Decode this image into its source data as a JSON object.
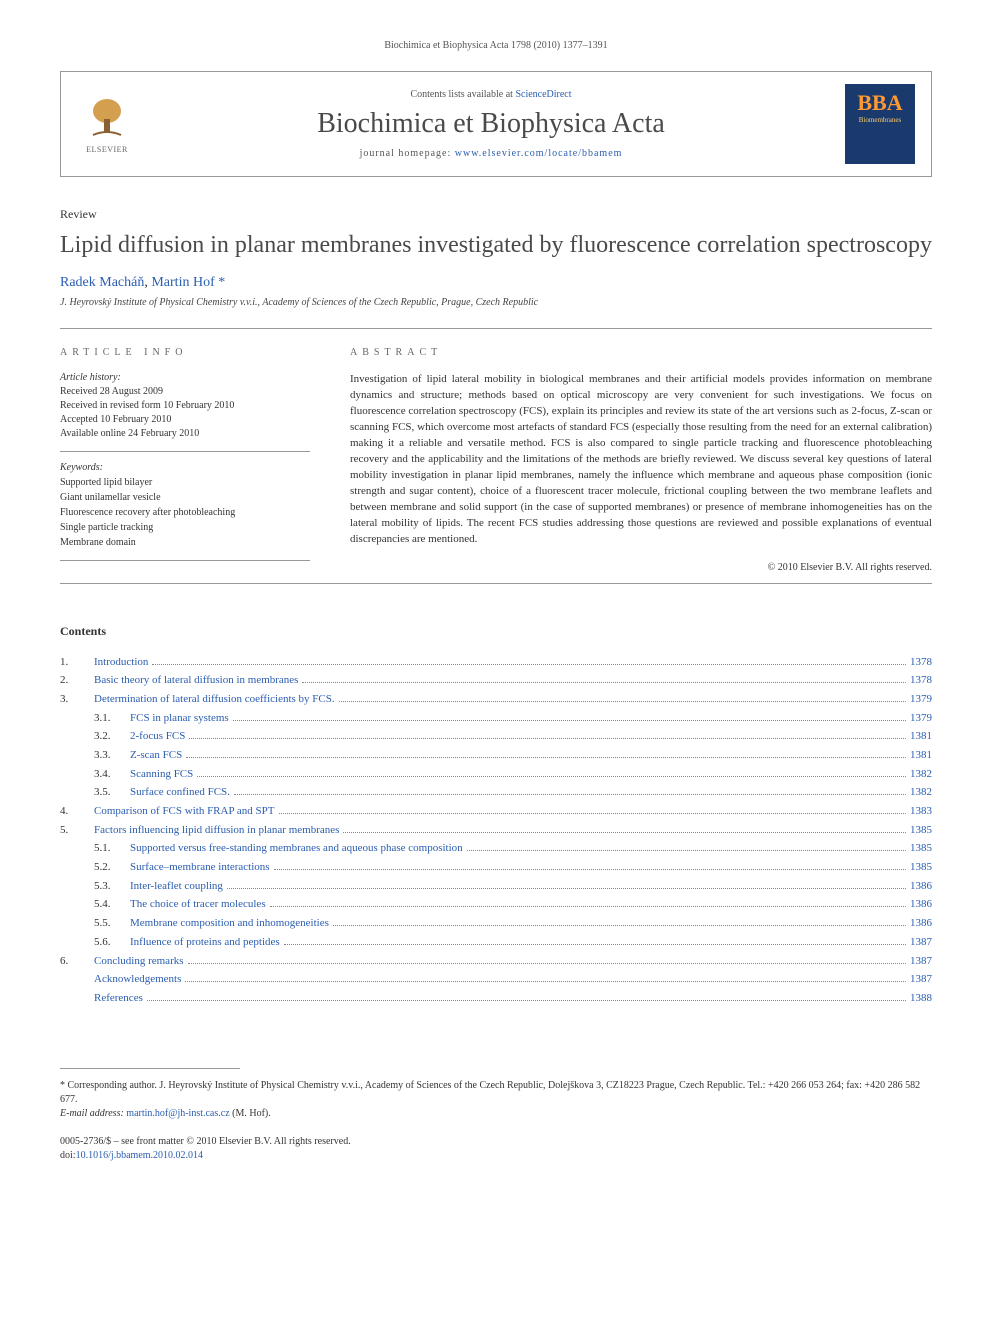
{
  "running_header": "Biochimica et Biophysica Acta 1798 (2010) 1377–1391",
  "masthead": {
    "contents_prefix": "Contents lists available at ",
    "contents_link": "ScienceDirect",
    "journal_name": "Biochimica et Biophysica Acta",
    "homepage_prefix": "journal homepage: ",
    "homepage_link": "www.elsevier.com/locate/bbamem",
    "elsevier_label": "ELSEVIER",
    "bba_top": "BBA",
    "bba_sub": "Biomembranes"
  },
  "article": {
    "type": "Review",
    "title": "Lipid diffusion in planar membranes investigated by fluorescence correlation spectroscopy",
    "authors_html": "Radek Macháň, Martin Hof",
    "author1": "Radek Macháň",
    "author2": "Martin Hof",
    "corr_mark": "*",
    "affiliation": "J. Heyrovský Institute of Physical Chemistry v.v.i., Academy of Sciences of the Czech Republic, Prague, Czech Republic"
  },
  "info": {
    "section_label": "ARTICLE INFO",
    "history_title": "Article history:",
    "history": [
      "Received 28 August 2009",
      "Received in revised form 10 February 2010",
      "Accepted 10 February 2010",
      "Available online 24 February 2010"
    ],
    "keywords_title": "Keywords:",
    "keywords": [
      "Supported lipid bilayer",
      "Giant unilamellar vesicle",
      "Fluorescence recovery after photobleaching",
      "Single particle tracking",
      "Membrane domain"
    ]
  },
  "abstract": {
    "section_label": "ABSTRACT",
    "text": "Investigation of lipid lateral mobility in biological membranes and their artificial models provides information on membrane dynamics and structure; methods based on optical microscopy are very convenient for such investigations. We focus on fluorescence correlation spectroscopy (FCS), explain its principles and review its state of the art versions such as 2-focus, Z-scan or scanning FCS, which overcome most artefacts of standard FCS (especially those resulting from the need for an external calibration) making it a reliable and versatile method. FCS is also compared to single particle tracking and fluorescence photobleaching recovery and the applicability and the limitations of the methods are briefly reviewed. We discuss several key questions of lateral mobility investigation in planar lipid membranes, namely the influence which membrane and aqueous phase composition (ionic strength and sugar content), choice of a fluorescent tracer molecule, frictional coupling between the two membrane leaflets and between membrane and solid support (in the case of supported membranes) or presence of membrane inhomogeneities has on the lateral mobility of lipids. The recent FCS studies addressing those questions are reviewed and possible explanations of eventual discrepancies are mentioned.",
    "copyright": "© 2010 Elsevier B.V. All rights reserved."
  },
  "contents": {
    "heading": "Contents",
    "items": [
      {
        "num": "1.",
        "title": "Introduction",
        "page": "1378",
        "sub": []
      },
      {
        "num": "2.",
        "title": "Basic theory of lateral diffusion in membranes",
        "page": "1378",
        "sub": []
      },
      {
        "num": "3.",
        "title": "Determination of lateral diffusion coefficients by FCS.",
        "page": "1379",
        "sub": [
          {
            "num": "3.1.",
            "title": "FCS in planar systems",
            "page": "1379"
          },
          {
            "num": "3.2.",
            "title": "2-focus FCS",
            "page": "1381"
          },
          {
            "num": "3.3.",
            "title": "Z-scan FCS",
            "page": "1381"
          },
          {
            "num": "3.4.",
            "title": "Scanning FCS",
            "page": "1382"
          },
          {
            "num": "3.5.",
            "title": "Surface confined FCS.",
            "page": "1382"
          }
        ]
      },
      {
        "num": "4.",
        "title": "Comparison of FCS with FRAP and SPT",
        "page": "1383",
        "sub": []
      },
      {
        "num": "5.",
        "title": "Factors influencing lipid diffusion in planar membranes",
        "page": "1385",
        "sub": [
          {
            "num": "5.1.",
            "title": "Supported versus free-standing membranes and aqueous phase composition",
            "page": "1385"
          },
          {
            "num": "5.2.",
            "title": "Surface–membrane interactions",
            "page": "1385"
          },
          {
            "num": "5.3.",
            "title": "Inter-leaflet coupling",
            "page": "1386"
          },
          {
            "num": "5.4.",
            "title": "The choice of tracer molecules",
            "page": "1386"
          },
          {
            "num": "5.5.",
            "title": "Membrane composition and inhomogeneities",
            "page": "1386"
          },
          {
            "num": "5.6.",
            "title": "Influence of proteins and peptides",
            "page": "1387"
          }
        ]
      },
      {
        "num": "6.",
        "title": "Concluding remarks",
        "page": "1387",
        "sub": []
      },
      {
        "num": "",
        "title": "Acknowledgements",
        "page": "1387",
        "sub": []
      },
      {
        "num": "",
        "title": "References",
        "page": "1388",
        "sub": []
      }
    ]
  },
  "footnote": {
    "corr_prefix": "* Corresponding author. J. Heyrovský Institute of Physical Chemistry v.v.i., Academy of Sciences of the Czech Republic, Dolejškova 3, CZ18223 Prague, Czech Republic. Tel.: +420 266 053 264; fax: +420 286 582 677.",
    "email_label": "E-mail address:",
    "email": "martin.hof@jh-inst.cas.cz",
    "email_owner": "(M. Hof)."
  },
  "doi": {
    "line1": "0005-2736/$ – see front matter © 2010 Elsevier B.V. All rights reserved.",
    "line2_prefix": "doi:",
    "line2_link": "10.1016/j.bbamem.2010.02.014"
  },
  "colors": {
    "link": "#2a5db0",
    "text": "#333333",
    "muted": "#666666",
    "rule": "#999999",
    "bba_bg": "#1a3a6e",
    "bba_accent": "#ff9933"
  }
}
